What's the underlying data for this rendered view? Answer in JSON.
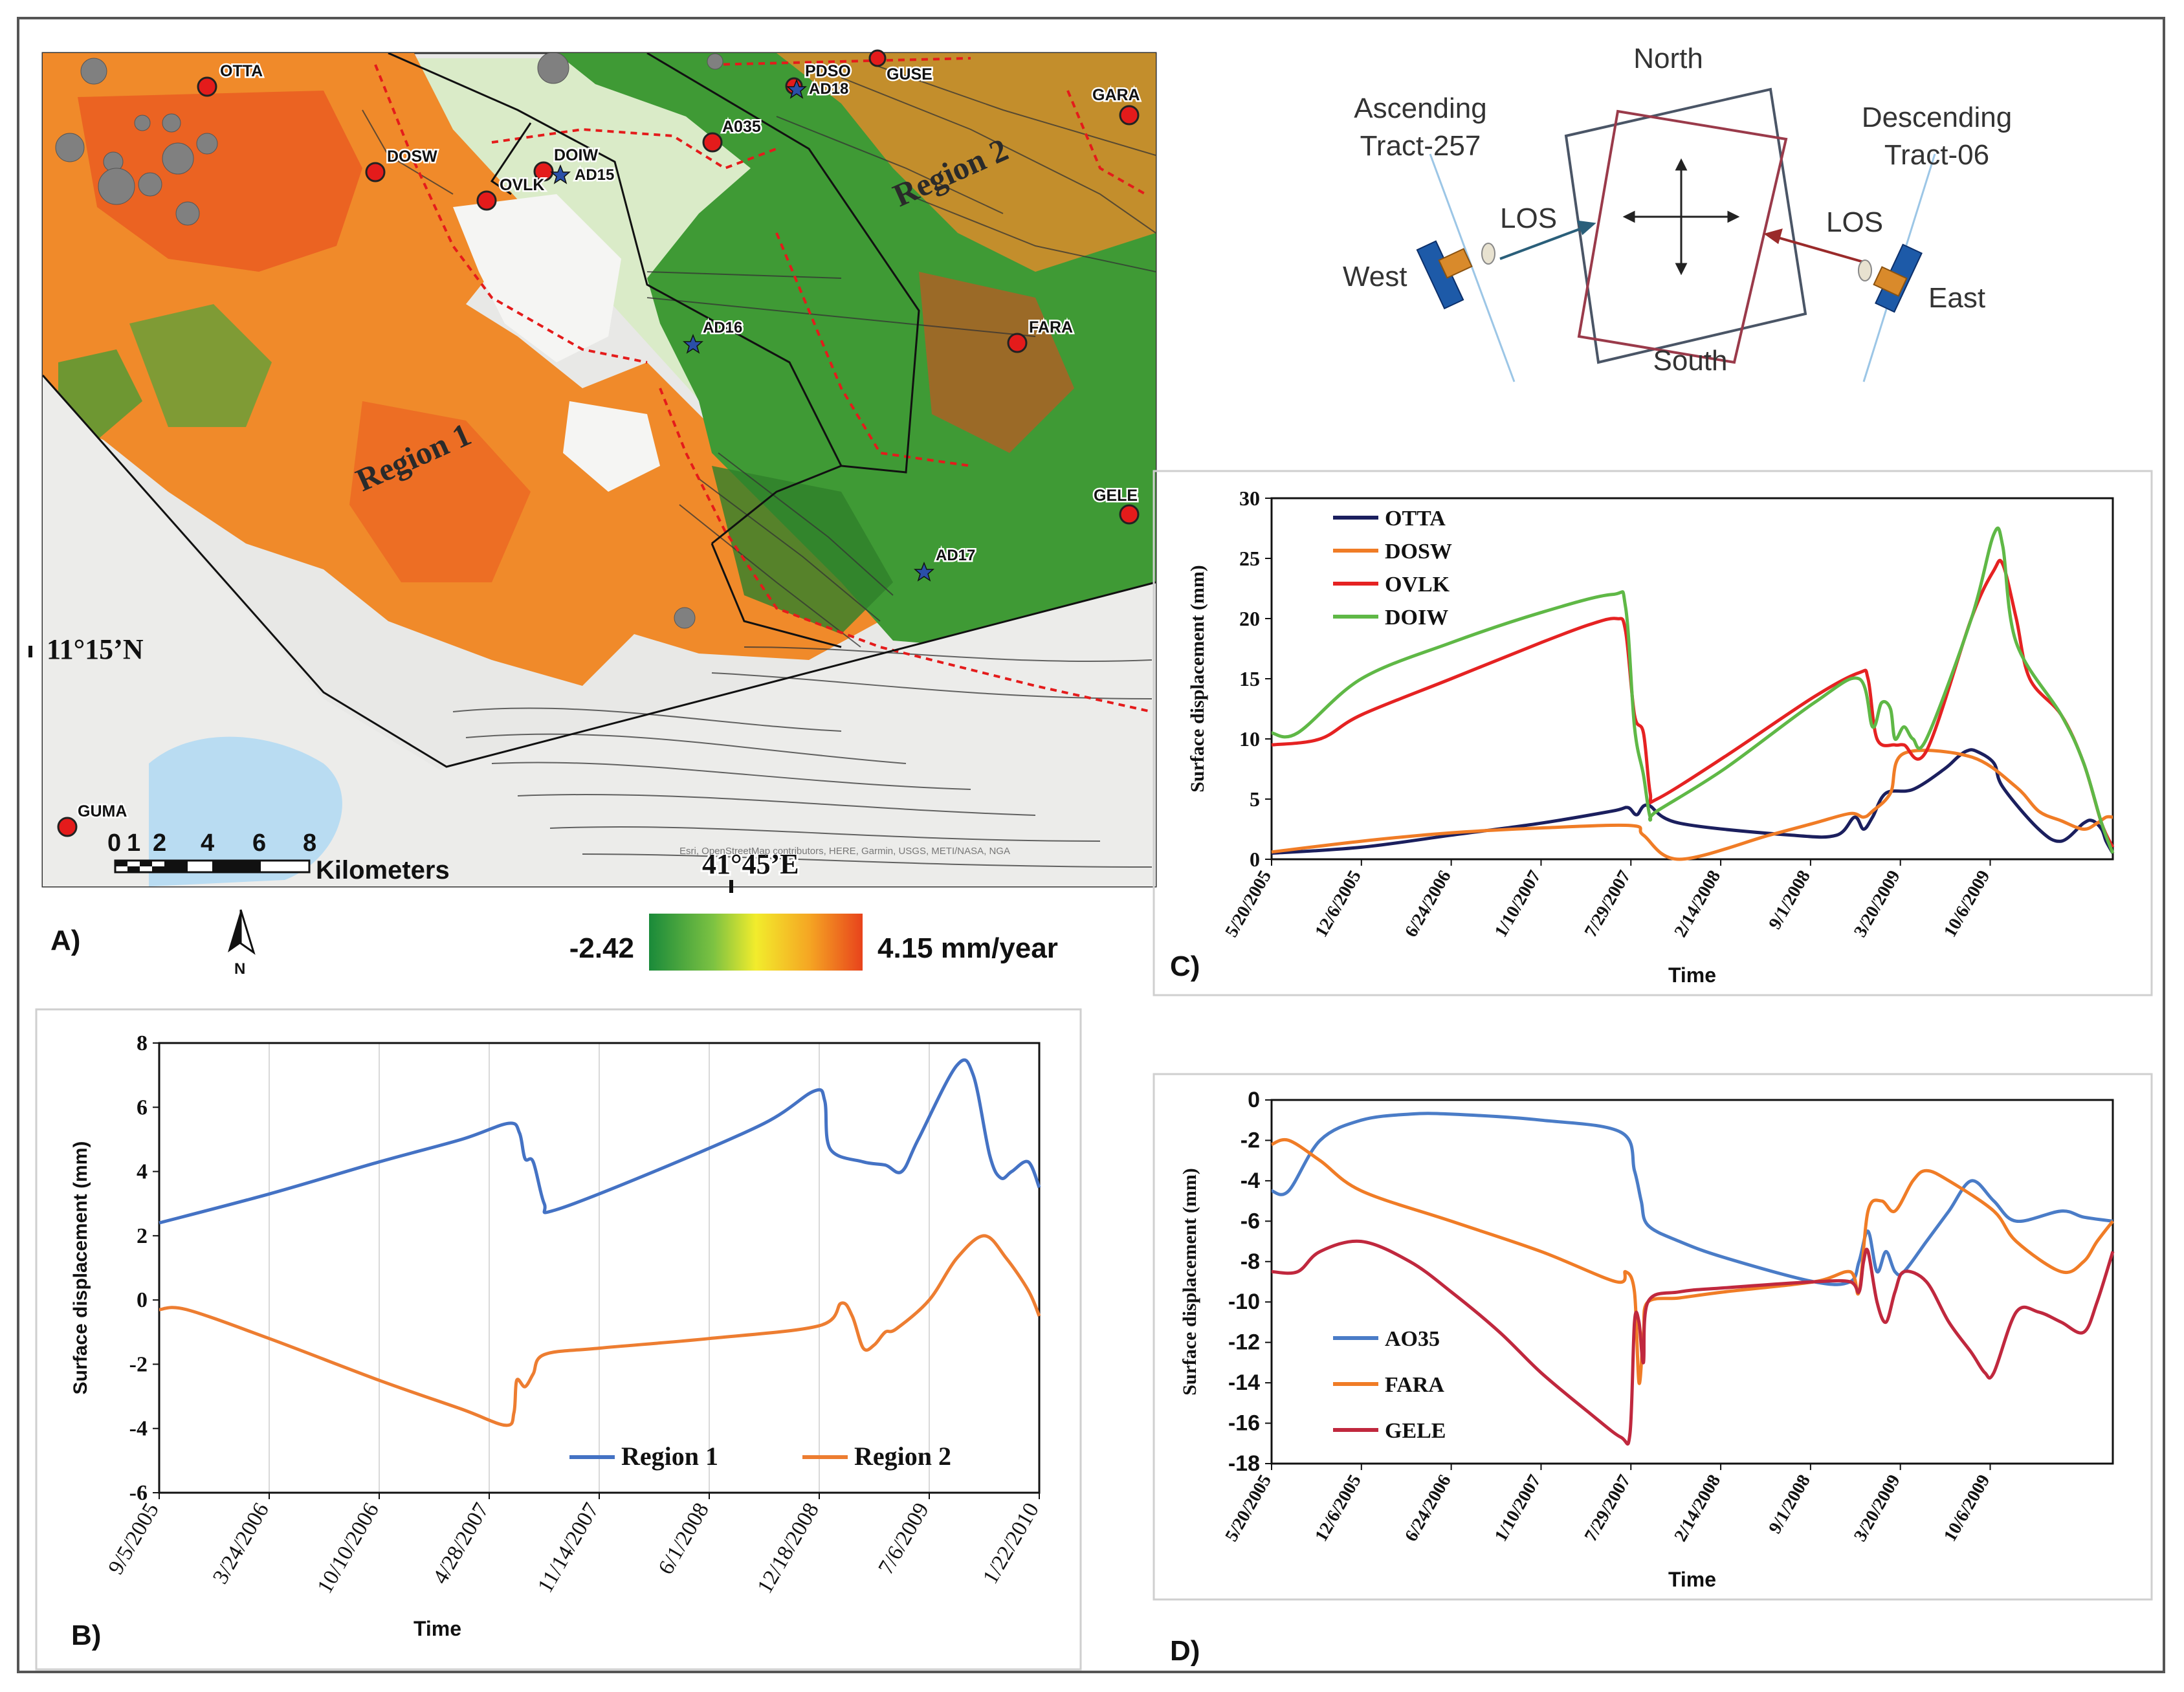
{
  "panel_labels": {
    "a": "A)",
    "b": "B)",
    "c": "C)",
    "d": "D)"
  },
  "map": {
    "coord_lat": "11°15’N",
    "coord_lon": "41°45’E",
    "region_labels": [
      "Region 1",
      "Region 2"
    ],
    "stations": [
      "OTTA",
      "DOSW",
      "DOIW",
      "OVLK",
      "A035",
      "PDSO",
      "GUSE",
      "GARA",
      "FARA",
      "GELE",
      "GUMA"
    ],
    "gps_sites": [
      "AD18",
      "AD15",
      "AD16",
      "AD17"
    ],
    "scale_ticks": [
      "0",
      "1",
      "2",
      "4",
      "6",
      "8"
    ],
    "scale_unit": "Kilometers",
    "north_label": "N",
    "attribution": "Esri, OpenStreetMap contributors, HERE, Garmin, USGS, METI/NASA, NGA",
    "colors": {
      "map_bg": "#e8e8e6",
      "deform_pos": "#f08a2a",
      "deform_hot": "#e8431c",
      "deform_neg": "#3f9a35",
      "station": "#e41b1b",
      "gps_star": "#2a4fa8"
    }
  },
  "colorbar": {
    "min_label": "-2.42",
    "max_label": "4.15 mm/year",
    "colors": [
      "#1a8a3a",
      "#7cc242",
      "#f2ec2c",
      "#f5a623",
      "#e8431c"
    ]
  },
  "geometry_diagram": {
    "north": "North",
    "south": "South",
    "west": "West",
    "east": "East",
    "ascending": "Ascending",
    "ascending_tract": "Tract-257",
    "descending": "Descending",
    "descending_tract": "Tract-06",
    "los": "LOS"
  },
  "chart_data": [
    {
      "id": "C",
      "type": "line",
      "title": "",
      "xlabel": "Time",
      "ylabel": "Surface displacement (mm)",
      "ylim": [
        0,
        30
      ],
      "yticks": [
        0,
        5,
        10,
        15,
        20,
        25,
        30
      ],
      "xlim": [
        38492,
        40365
      ],
      "xtick_values": [
        38492,
        38692,
        38892,
        39092,
        39292,
        39492,
        39692,
        39892,
        40092
      ],
      "xtick_labels": [
        "5/20/2005",
        "12/6/2005",
        "6/24/2006",
        "1/10/2007",
        "7/29/2007",
        "2/14/2008",
        "9/1/2008",
        "3/20/2009",
        "10/6/2009"
      ],
      "legend_position": "top-left",
      "series": [
        {
          "name": "OTTA",
          "color": "#1b1f5e",
          "x": [
            38492,
            38692,
            38892,
            39092,
            39250,
            39285,
            39305,
            39330,
            39400,
            39650,
            39750,
            39790,
            39810,
            39830,
            39860,
            39920,
            39990,
            40020,
            40040,
            40060,
            40100,
            40120,
            40200,
            40250,
            40300,
            40320,
            40340,
            40350,
            40365
          ],
          "y": [
            0.5,
            1.0,
            2.0,
            3.0,
            4.0,
            4.3,
            3.7,
            4.5,
            3.0,
            2.0,
            2.0,
            3.5,
            2.5,
            3.5,
            5.5,
            5.8,
            7.5,
            8.5,
            9.0,
            9.0,
            8.0,
            6.0,
            2.5,
            1.5,
            3.0,
            3.2,
            2.5,
            1.5,
            0.5
          ]
        },
        {
          "name": "DOSW",
          "color": "#f07c26",
          "x": [
            38492,
            38692,
            38892,
            39092,
            39292,
            39320,
            39400,
            39600,
            39700,
            39780,
            39810,
            39830,
            39870,
            39900,
            40050,
            40150,
            40200,
            40250,
            40300,
            40330,
            40350,
            40365
          ],
          "y": [
            0.6,
            1.5,
            2.2,
            2.6,
            2.8,
            2.0,
            0.0,
            2.0,
            3.0,
            3.8,
            3.5,
            4.0,
            5.5,
            8.8,
            8.5,
            6.0,
            4.0,
            3.2,
            2.5,
            3.0,
            3.5,
            3.5
          ]
        },
        {
          "name": "OVLK",
          "color": "#e52222",
          "x": [
            38492,
            38600,
            38692,
            38892,
            39092,
            39200,
            39260,
            39280,
            39300,
            39320,
            39335,
            39350,
            39500,
            39700,
            39800,
            39820,
            39840,
            39880,
            39900,
            39950,
            40050,
            40100,
            40120,
            40150,
            40180,
            40250,
            40300,
            40340,
            40365
          ],
          "y": [
            9.5,
            10.0,
            12.0,
            15.0,
            18.0,
            19.5,
            20.0,
            19.0,
            12.0,
            10.5,
            5.5,
            5.0,
            8.5,
            13.5,
            15.5,
            15.0,
            10.0,
            9.5,
            9.5,
            9.0,
            20.0,
            24.0,
            24.5,
            20.0,
            15.0,
            12.0,
            8.0,
            3.0,
            1.0
          ]
        },
        {
          "name": "DOIW",
          "color": "#5fb846",
          "x": [
            38492,
            38550,
            38692,
            38892,
            39092,
            39250,
            39280,
            39300,
            39320,
            39335,
            39350,
            39500,
            39700,
            39800,
            39830,
            39850,
            39870,
            39880,
            39900,
            39920,
            39950,
            40050,
            40100,
            40120,
            40150,
            40250,
            40300,
            40340,
            40365
          ],
          "y": [
            10.5,
            10.5,
            15.0,
            18.0,
            20.5,
            22.0,
            21.0,
            11.0,
            7.0,
            3.5,
            4.0,
            7.5,
            13.0,
            15.0,
            11.0,
            13.0,
            12.5,
            10.0,
            11.0,
            10.0,
            10.0,
            20.0,
            27.0,
            26.0,
            18.0,
            12.0,
            8.0,
            3.0,
            0.5
          ]
        }
      ]
    },
    {
      "id": "B",
      "type": "line",
      "title": "",
      "xlabel": "Time",
      "ylabel": "Surface displacement (mm)",
      "ylim": [
        -6,
        8
      ],
      "yticks": [
        -6,
        -4,
        -2,
        0,
        2,
        4,
        6,
        8
      ],
      "xlim": [
        38600,
        40200
      ],
      "xtick_values": [
        38600,
        38800,
        39000,
        39200,
        39400,
        39600,
        39800,
        40000,
        40200
      ],
      "xtick_labels": [
        "9/5/2005",
        "3/24/2006",
        "10/10/2006",
        "4/28/2007",
        "11/14/2007",
        "6/1/2008",
        "12/18/2008",
        "7/6/2009",
        "1/22/2010"
      ],
      "legend_position": "bottom-right",
      "series": [
        {
          "name": "Region 1",
          "color": "#4472c4",
          "x": [
            38600,
            38800,
            39000,
            39150,
            39235,
            39255,
            39265,
            39280,
            39300,
            39320,
            39500,
            39700,
            39790,
            39810,
            39820,
            39880,
            39920,
            39950,
            39980,
            40050,
            40080,
            40110,
            40130,
            40150,
            40180,
            40200
          ],
          "y": [
            2.4,
            3.3,
            4.3,
            5.0,
            5.5,
            5.2,
            4.4,
            4.3,
            3.0,
            2.8,
            4.0,
            5.5,
            6.5,
            6.2,
            4.7,
            4.3,
            4.2,
            4.0,
            5.0,
            7.3,
            7.0,
            4.5,
            3.8,
            4.0,
            4.3,
            3.5
          ]
        },
        {
          "name": "Region 2",
          "color": "#ed7d31",
          "x": [
            38600,
            38650,
            38800,
            39000,
            39150,
            39230,
            39245,
            39250,
            39265,
            39280,
            39300,
            39400,
            39600,
            39800,
            39840,
            39860,
            39880,
            39900,
            39920,
            39940,
            40000,
            40050,
            40100,
            40140,
            40180,
            40200
          ],
          "y": [
            -0.3,
            -0.3,
            -1.2,
            -2.5,
            -3.4,
            -3.9,
            -3.5,
            -2.5,
            -2.7,
            -2.3,
            -1.7,
            -1.5,
            -1.2,
            -0.8,
            -0.1,
            -0.5,
            -1.5,
            -1.4,
            -1.0,
            -0.9,
            0.0,
            1.3,
            2.0,
            1.3,
            0.3,
            -0.5
          ]
        }
      ]
    },
    {
      "id": "D",
      "type": "line",
      "title": "",
      "xlabel": "Time",
      "ylabel": "Surface displacement (mm)",
      "ylim": [
        -18,
        0
      ],
      "yticks": [
        -18,
        -16,
        -14,
        -12,
        -10,
        -8,
        -6,
        -4,
        -2,
        0
      ],
      "xlim": [
        38492,
        40365
      ],
      "xtick_values": [
        38492,
        38692,
        38892,
        39092,
        39292,
        39492,
        39692,
        39892,
        40092
      ],
      "xtick_labels": [
        "5/20/2005",
        "12/6/2005",
        "6/24/2006",
        "1/10/2007",
        "7/29/2007",
        "2/14/2008",
        "9/1/2008",
        "3/20/2009",
        "10/6/2009"
      ],
      "legend_position": "bottom-left",
      "series": [
        {
          "name": "AO35",
          "color": "#4a7cc7",
          "x": [
            38492,
            38530,
            38600,
            38692,
            38800,
            38892,
            39092,
            39270,
            39300,
            39315,
            39330,
            39400,
            39500,
            39700,
            39780,
            39800,
            39820,
            39840,
            39860,
            39880,
            39900,
            39950,
            40000,
            40050,
            40100,
            40150,
            40250,
            40300,
            40365
          ],
          "y": [
            -4.5,
            -4.5,
            -2.0,
            -1.0,
            -0.7,
            -0.7,
            -1.0,
            -1.6,
            -3.5,
            -5.0,
            -6.2,
            -7.0,
            -7.8,
            -9.0,
            -9.0,
            -8.0,
            -6.5,
            -8.5,
            -7.5,
            -8.5,
            -8.5,
            -7.0,
            -5.5,
            -4.0,
            -5.0,
            -6.0,
            -5.5,
            -5.8,
            -6.0
          ]
        },
        {
          "name": "FARA",
          "color": "#f07c26",
          "x": [
            38492,
            38530,
            38600,
            38692,
            38892,
            39092,
            39260,
            39280,
            39300,
            39310,
            39320,
            39330,
            39400,
            39500,
            39700,
            39780,
            39800,
            39820,
            39850,
            39880,
            39920,
            39950,
            40000,
            40100,
            40150,
            40250,
            40300,
            40330,
            40365
          ],
          "y": [
            -2.2,
            -2.0,
            -3.0,
            -4.5,
            -6.0,
            -7.5,
            -9.0,
            -8.5,
            -9.5,
            -14.0,
            -11.5,
            -10.0,
            -9.8,
            -9.5,
            -9.0,
            -8.5,
            -9.5,
            -5.5,
            -5.0,
            -5.5,
            -4.0,
            -3.5,
            -4.0,
            -5.5,
            -7.0,
            -8.5,
            -8.0,
            -7.0,
            -6.0
          ]
        },
        {
          "name": "GELE",
          "color": "#c0283e",
          "x": [
            38492,
            38550,
            38600,
            38692,
            38800,
            38892,
            39000,
            39092,
            39200,
            39270,
            39290,
            39300,
            39310,
            39320,
            39330,
            39400,
            39500,
            39700,
            39780,
            39800,
            39810,
            39820,
            39840,
            39860,
            39880,
            39900,
            39950,
            40000,
            40050,
            40080,
            40100,
            40150,
            40200,
            40250,
            40300,
            40330,
            40365
          ],
          "y": [
            -8.5,
            -8.5,
            -7.5,
            -7.0,
            -8.0,
            -9.5,
            -11.5,
            -13.5,
            -15.5,
            -16.7,
            -16.5,
            -11.0,
            -11.0,
            -13.0,
            -10.0,
            -9.5,
            -9.3,
            -9.0,
            -9.0,
            -9.5,
            -8.0,
            -7.5,
            -10.0,
            -11.0,
            -9.5,
            -8.5,
            -9.0,
            -11.0,
            -12.5,
            -13.5,
            -13.5,
            -10.5,
            -10.5,
            -11.0,
            -11.5,
            -10.0,
            -7.5
          ]
        }
      ]
    }
  ]
}
